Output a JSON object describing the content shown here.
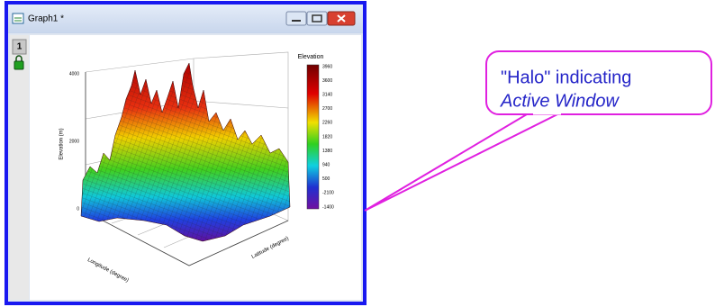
{
  "window": {
    "title": "Graph1 *",
    "layer": "1"
  },
  "graph": {
    "legend_title": "Elevation",
    "colorbar_labels": [
      "3960",
      "3600",
      "3140",
      "2700",
      "2260",
      "1820",
      "1380",
      "940",
      "500",
      "-2100",
      "-1400"
    ],
    "z_axis_title": "Elevation (m)",
    "z_ticks": [
      "4000",
      "2000",
      "0"
    ],
    "x_axis_title": "Longitude (degree)",
    "y_axis_title": "Latitude (degree)"
  },
  "callout": {
    "line1": "\"Halo\" indicating",
    "line2": "Active Window"
  }
}
